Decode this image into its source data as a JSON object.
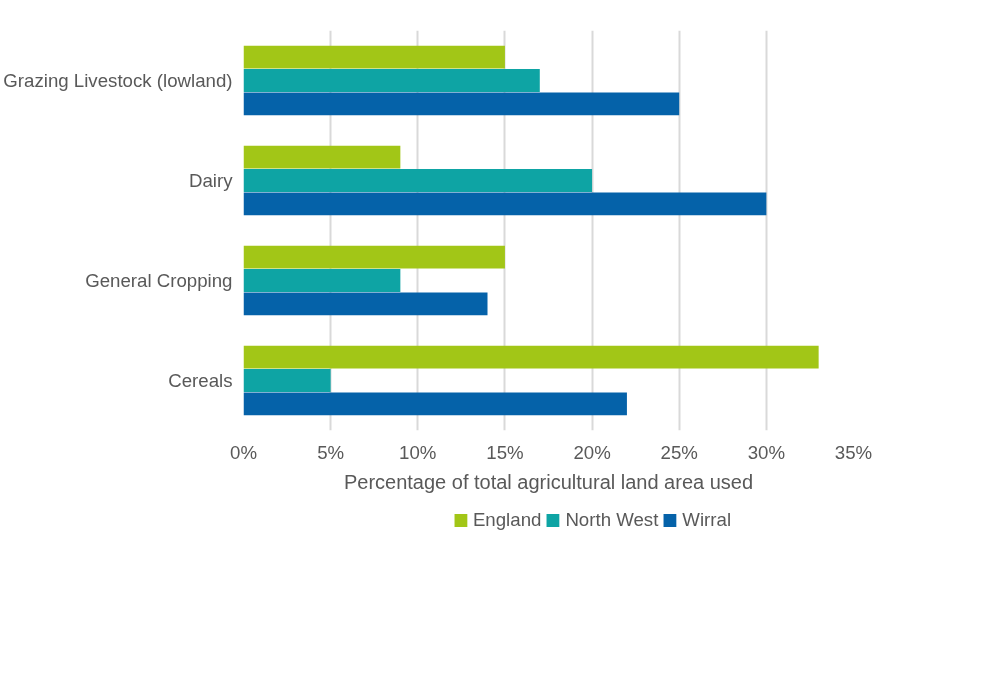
{
  "chart_data": {
    "type": "bar",
    "orientation": "horizontal",
    "xlabel": "Percentage of total agricultural land area used",
    "categories": [
      "Grazing Livestock (lowland)",
      "Dairy",
      "General Cropping",
      "Cereals"
    ],
    "series": [
      {
        "name": "England",
        "color": "#a2c617",
        "values": [
          15,
          9,
          15,
          33
        ]
      },
      {
        "name": "North West",
        "color": "#0ea4a4",
        "values": [
          17,
          20,
          9,
          5
        ]
      },
      {
        "name": "Wirral",
        "color": "#0562a9",
        "values": [
          25,
          30,
          14,
          22
        ]
      }
    ],
    "xlim": [
      0,
      35
    ],
    "xticks": [
      {
        "value": 0,
        "label": "0%"
      },
      {
        "value": 5,
        "label": "5%"
      },
      {
        "value": 10,
        "label": "10%"
      },
      {
        "value": 15,
        "label": "15%"
      },
      {
        "value": 20,
        "label": "20%"
      },
      {
        "value": 25,
        "label": "25%"
      },
      {
        "value": 30,
        "label": "30%"
      },
      {
        "value": 35,
        "label": "35%"
      }
    ],
    "grid": "x",
    "legend": "bottom"
  }
}
